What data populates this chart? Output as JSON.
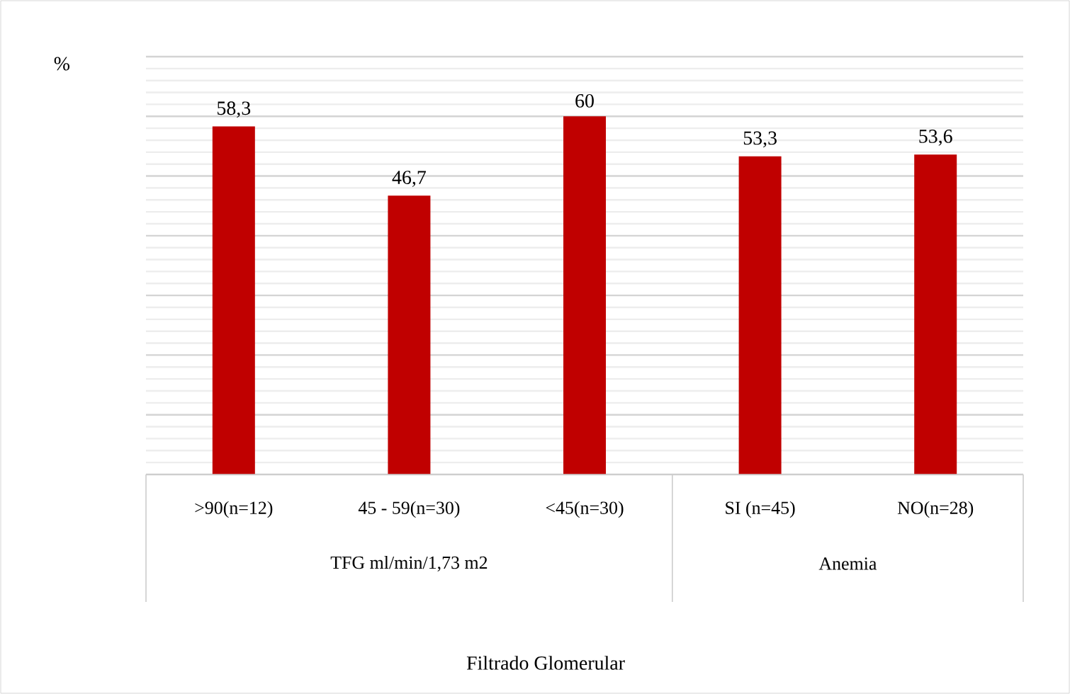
{
  "chart_data": {
    "type": "bar",
    "ylabel": "%",
    "categories": [
      ">90(n=12)",
      "45 - 59(n=30)",
      "<45(n=30)",
      "SI (n=45)",
      "NO(n=28)"
    ],
    "values": [
      58.3,
      46.7,
      60,
      53.3,
      53.6
    ],
    "value_labels": [
      "58,3",
      "46,7",
      "60",
      "53,3",
      "53,6"
    ],
    "color": "#c00000",
    "ylim": [
      0,
      70
    ],
    "yticks": [
      {
        "value": 0,
        "label": null
      },
      {
        "value": 10,
        "label": null
      },
      {
        "value": 20,
        "label": null
      },
      {
        "value": 30,
        "label": null
      },
      {
        "value": 40,
        "label": null
      },
      {
        "value": 50,
        "label": null
      },
      {
        "value": 60,
        "label": null
      },
      {
        "value": 70,
        "label": null
      }
    ],
    "tick_labels": "x",
    "grid": "y",
    "annotations": [
      "TFG ml/min/1,73 m2",
      "Anemia",
      "Filtrado Glomerular"
    ]
  }
}
